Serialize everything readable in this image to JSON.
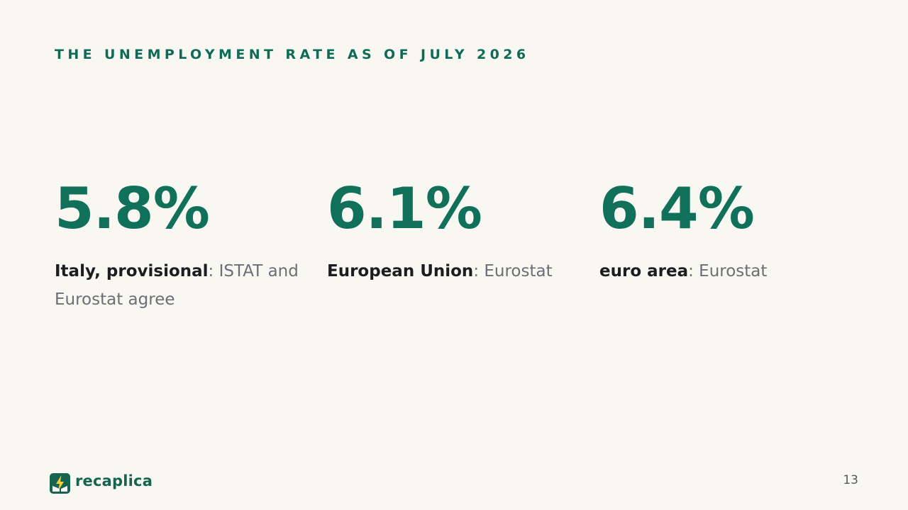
{
  "slide": {
    "title": "THE UNEMPLOYMENT RATE AS OF JULY 2026",
    "page_number": "13"
  },
  "stats": [
    {
      "value": "5.8%",
      "label": "Italy, provisional",
      "separator": ":",
      "source": " ISTAT and Eurostat agree"
    },
    {
      "value": "6.1%",
      "label": "European Union",
      "separator": ":",
      "source": " Eurostat"
    },
    {
      "value": "6.4%",
      "label": "euro area",
      "separator": ":",
      "source": " Eurostat"
    }
  ],
  "brand": {
    "name": "recaplica",
    "icon": "recaplica-logo-icon",
    "color": "#16634f",
    "accent": "#10705a",
    "icon_bolt_color": "#f2d23a"
  }
}
